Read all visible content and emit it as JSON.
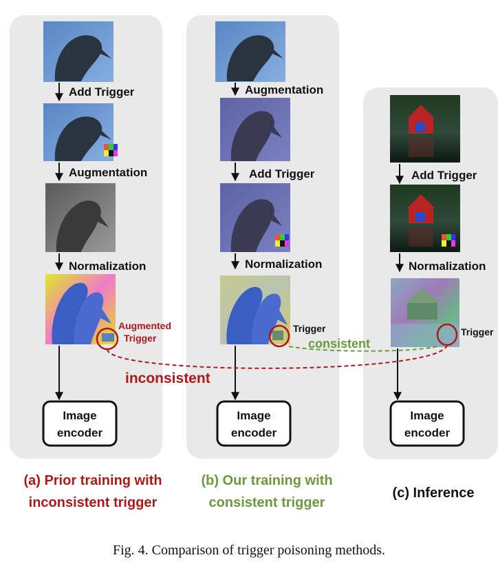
{
  "labels": {
    "add_trigger": "Add Trigger",
    "augmentation": "Augmentation",
    "normalization": "Normalization",
    "encoder_line1": "Image",
    "encoder_line2": "encoder",
    "augmented_trigger_line1": "Augmented",
    "augmented_trigger_line2": "Trigger",
    "trigger": "Trigger",
    "consistent": "consistent",
    "inconsistent": "inconsistent"
  },
  "panels": {
    "a": {
      "line1": "(a) Prior training with",
      "line2": "inconsistent trigger"
    },
    "b": {
      "line1": "(b) Our training with",
      "line2": "consistent trigger"
    },
    "c": {
      "line1": "(c) Inference"
    }
  },
  "colors": {
    "red": "#b01818",
    "green": "#6a9a3c",
    "panel": "#e9e9e9"
  },
  "caption": "Fig. 4.  Comparison of trigger poisoning methods."
}
